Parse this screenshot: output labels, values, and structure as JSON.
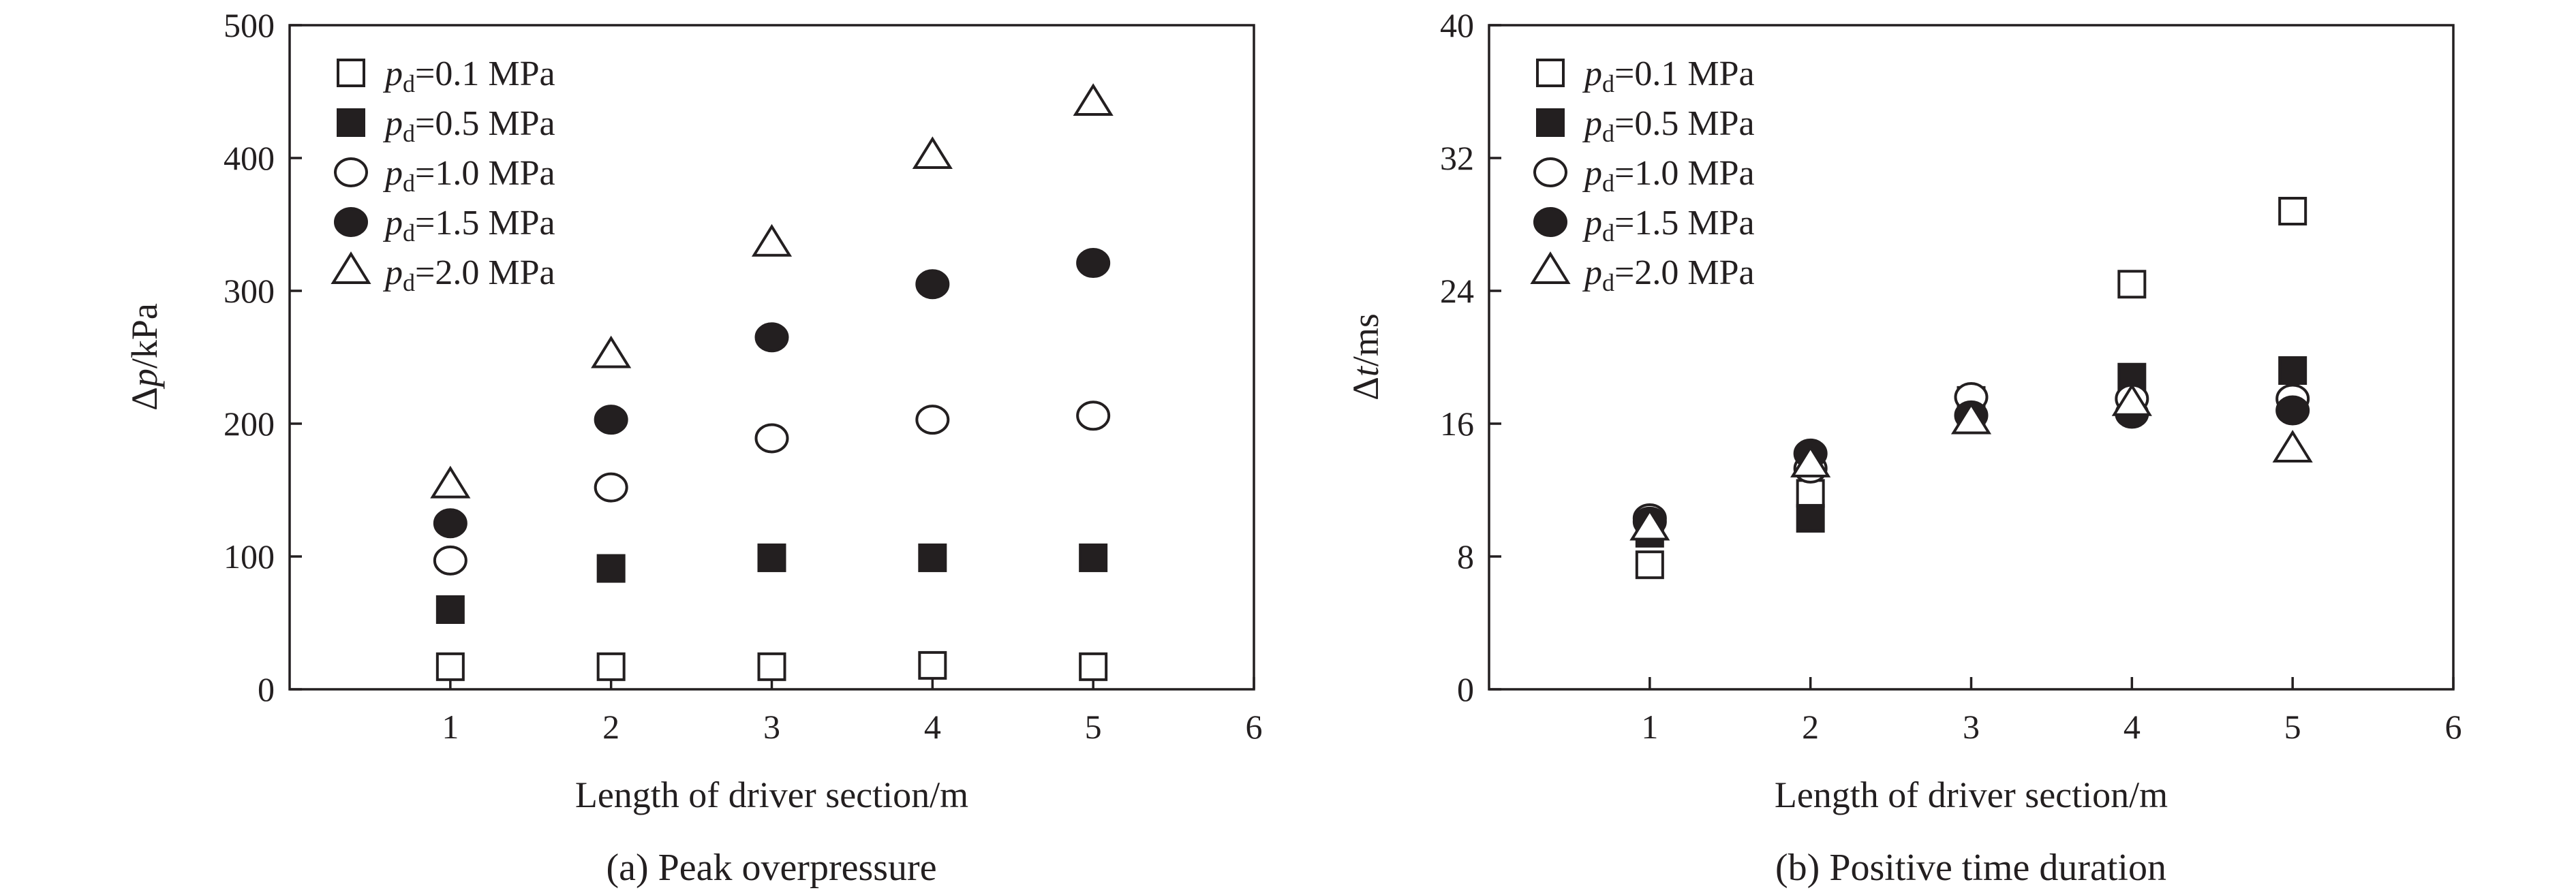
{
  "chart_data": [
    {
      "type": "scatter",
      "caption": "(a) Peak overpressure",
      "xlabel": "Length of driver section/m",
      "ylabel": {
        "prefix": "Δ",
        "var": "p",
        "suffix": "/kPa"
      },
      "xlim": [
        0,
        6
      ],
      "ylim": [
        0,
        500
      ],
      "xticks": [
        1,
        2,
        3,
        4,
        5,
        6
      ],
      "yticks": [
        0,
        100,
        200,
        300,
        400,
        500
      ],
      "legend_position": "top-left",
      "x": [
        1,
        2,
        3,
        4,
        5
      ],
      "series": [
        {
          "name": "0.1 MPa",
          "marker": "square-open",
          "values": [
            17,
            17,
            17,
            18,
            17
          ]
        },
        {
          "name": "0.5 MPa",
          "marker": "square-filled",
          "values": [
            60,
            91,
            99,
            99,
            99
          ]
        },
        {
          "name": "1.0 MPa",
          "marker": "circle-open",
          "values": [
            97,
            152,
            189,
            203,
            206
          ]
        },
        {
          "name": "1.5 MPa",
          "marker": "circle-filled",
          "values": [
            125,
            203,
            265,
            305,
            321
          ]
        },
        {
          "name": "2.0 MPa",
          "marker": "triangle-open",
          "values": [
            153,
            251,
            335,
            401,
            441
          ]
        }
      ]
    },
    {
      "type": "scatter",
      "caption": "(b) Positive time duration",
      "xlabel": "Length of driver section/m",
      "ylabel": {
        "prefix": "Δ",
        "var": "t",
        "suffix": "/ms"
      },
      "xlim": [
        0,
        6
      ],
      "ylim": [
        0,
        40
      ],
      "xticks": [
        1,
        2,
        3,
        4,
        5,
        6
      ],
      "yticks": [
        0,
        8,
        16,
        24,
        32,
        40
      ],
      "legend_position": "top-left",
      "x": [
        1,
        2,
        3,
        4,
        5
      ],
      "series": [
        {
          "name": "0.1 MPa",
          "marker": "square-open",
          "values": [
            7.5,
            11.8,
            17.4,
            24.4,
            28.8
          ]
        },
        {
          "name": "0.5 MPa",
          "marker": "square-filled",
          "values": [
            9.4,
            10.3,
            16.8,
            18.8,
            19.2
          ]
        },
        {
          "name": "1.0 MPa",
          "marker": "circle-open",
          "values": [
            10.3,
            13.3,
            17.6,
            17.5,
            17.5
          ]
        },
        {
          "name": "1.5 MPa",
          "marker": "circle-filled",
          "values": [
            10.1,
            14.2,
            16.5,
            16.6,
            16.8
          ]
        },
        {
          "name": "2.0 MPa",
          "marker": "triangle-open",
          "values": [
            9.7,
            13.5,
            16.1,
            17.2,
            14.4
          ]
        }
      ]
    }
  ],
  "legend_prefix": {
    "var": "p",
    "sub": "d",
    "eq": "="
  },
  "colors": {
    "ink": "#231f20",
    "background": "#ffffff"
  }
}
